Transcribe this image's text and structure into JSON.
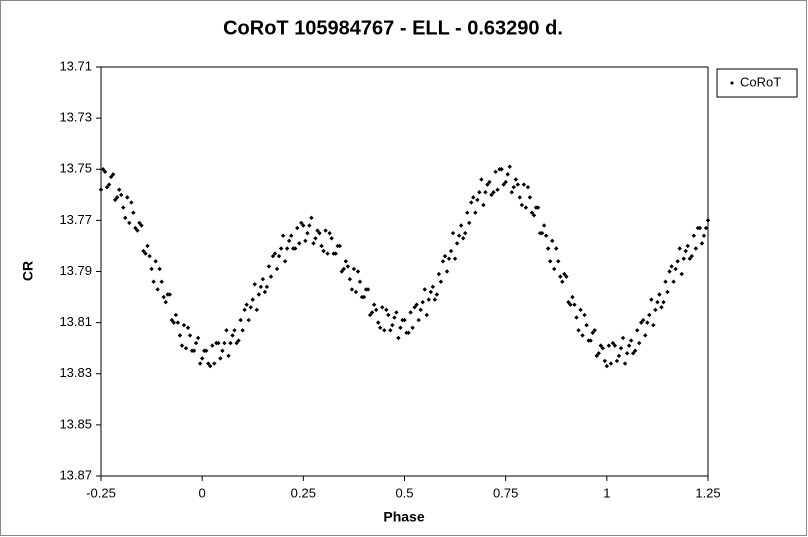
{
  "chart_data": {
    "type": "scatter",
    "title": "CoRoT 105984767  - ELL - 0.63290 d.",
    "x_label": "Phase",
    "y_label": "CR",
    "xlim": [
      -0.25,
      1.25
    ],
    "xticks": [
      -0.25,
      0,
      0.25,
      0.5,
      0.75,
      1,
      1.25
    ],
    "ylim": [
      13.71,
      13.87
    ],
    "yticks": [
      13.71,
      13.73,
      13.75,
      13.77,
      13.79,
      13.81,
      13.83,
      13.85,
      13.87
    ],
    "y_reversed": true,
    "grid": false,
    "legend": "right",
    "series": [
      {
        "name": "CoRoT",
        "color": "#000000",
        "x": [
          -0.25,
          -0.245,
          -0.24,
          -0.235,
          -0.23,
          -0.225,
          -0.22,
          -0.215,
          -0.21,
          -0.205,
          -0.2,
          -0.195,
          -0.19,
          -0.185,
          -0.18,
          -0.175,
          -0.17,
          -0.165,
          -0.16,
          -0.155,
          -0.15,
          -0.145,
          -0.14,
          -0.135,
          -0.13,
          -0.125,
          -0.12,
          -0.115,
          -0.11,
          -0.105,
          -0.1,
          -0.095,
          -0.09,
          -0.085,
          -0.08,
          -0.075,
          -0.07,
          -0.065,
          -0.06,
          -0.055,
          -0.05,
          -0.045,
          -0.04,
          -0.035,
          -0.03,
          -0.025,
          -0.02,
          -0.015,
          -0.01,
          -0.005,
          0,
          0.005,
          0.01,
          0.015,
          0.02,
          0.025,
          0.03,
          0.035,
          0.04,
          0.045,
          0.05,
          0.055,
          0.06,
          0.065,
          0.07,
          0.075,
          0.08,
          0.085,
          0.09,
          0.095,
          0.1,
          0.105,
          0.11,
          0.115,
          0.12,
          0.125,
          0.13,
          0.135,
          0.14,
          0.145,
          0.15,
          0.155,
          0.16,
          0.165,
          0.17,
          0.175,
          0.18,
          0.185,
          0.19,
          0.195,
          0.2,
          0.205,
          0.21,
          0.215,
          0.22,
          0.225,
          0.23,
          0.235,
          0.24,
          0.245,
          0.25,
          0.255,
          0.26,
          0.265,
          0.27,
          0.275,
          0.28,
          0.285,
          0.29,
          0.295,
          0.3,
          0.305,
          0.31,
          0.315,
          0.32,
          0.325,
          0.33,
          0.335,
          0.34,
          0.345,
          0.35,
          0.355,
          0.36,
          0.365,
          0.37,
          0.375,
          0.38,
          0.385,
          0.39,
          0.395,
          0.4,
          0.405,
          0.41,
          0.415,
          0.42,
          0.425,
          0.43,
          0.435,
          0.44,
          0.445,
          0.45,
          0.455,
          0.46,
          0.465,
          0.47,
          0.475,
          0.48,
          0.485,
          0.49,
          0.495,
          0.5,
          0.505,
          0.51,
          0.515,
          0.52,
          0.525,
          0.53,
          0.535,
          0.54,
          0.545,
          0.55,
          0.555,
          0.56,
          0.565,
          0.57,
          0.575,
          0.58,
          0.585,
          0.59,
          0.595,
          0.6,
          0.605,
          0.61,
          0.615,
          0.62,
          0.625,
          0.63,
          0.635,
          0.64,
          0.645,
          0.65,
          0.655,
          0.66,
          0.665,
          0.67,
          0.675,
          0.68,
          0.685,
          0.69,
          0.695,
          0.7,
          0.705,
          0.71,
          0.715,
          0.72,
          0.725,
          0.73,
          0.735,
          0.74,
          0.745,
          0.75,
          0.755,
          0.76,
          0.765,
          0.77,
          0.775,
          0.78,
          0.785,
          0.79,
          0.795,
          0.8,
          0.805,
          0.81,
          0.815,
          0.82,
          0.825,
          0.83,
          0.835,
          0.84,
          0.845,
          0.85,
          0.855,
          0.86,
          0.865,
          0.87,
          0.875,
          0.88,
          0.885,
          0.89,
          0.895,
          0.9,
          0.905,
          0.91,
          0.915,
          0.92,
          0.925,
          0.93,
          0.935,
          0.94,
          0.945,
          0.95,
          0.955,
          0.96,
          0.965,
          0.97,
          0.975,
          0.98,
          0.985,
          0.99,
          0.995,
          1,
          1.005,
          1.01,
          1.015,
          1.02,
          1.025,
          1.03,
          1.035,
          1.04,
          1.045,
          1.05,
          1.055,
          1.06,
          1.065,
          1.07,
          1.075,
          1.08,
          1.085,
          1.09,
          1.095,
          1.1,
          1.105,
          1.11,
          1.115,
          1.12,
          1.125,
          1.13,
          1.135,
          1.14,
          1.145,
          1.15,
          1.155,
          1.16,
          1.165,
          1.17,
          1.175,
          1.18,
          1.185,
          1.19,
          1.195,
          1.2,
          1.205,
          1.21,
          1.215,
          1.22,
          1.225,
          1.23,
          1.235,
          1.24,
          1.245,
          1.25
        ],
        "values": [
          13.758,
          13.75,
          13.751,
          13.757,
          13.756,
          13.753,
          13.752,
          13.762,
          13.761,
          13.758,
          13.76,
          13.765,
          13.769,
          13.761,
          13.771,
          13.763,
          13.767,
          13.773,
          13.774,
          13.771,
          13.772,
          13.782,
          13.783,
          13.78,
          13.784,
          13.789,
          13.794,
          13.786,
          13.797,
          13.789,
          13.794,
          13.8,
          13.802,
          13.799,
          13.799,
          13.809,
          13.81,
          13.807,
          13.81,
          13.815,
          13.819,
          13.811,
          13.82,
          13.812,
          13.815,
          13.821,
          13.821,
          13.818,
          13.816,
          13.826,
          13.824,
          13.821,
          13.821,
          13.826,
          13.827,
          13.819,
          13.826,
          13.818,
          13.818,
          13.824,
          13.821,
          13.818,
          13.813,
          13.823,
          13.818,
          13.815,
          13.813,
          13.818,
          13.817,
          13.809,
          13.813,
          13.805,
          13.803,
          13.809,
          13.804,
          13.801,
          13.795,
          13.805,
          13.799,
          13.796,
          13.793,
          13.798,
          13.796,
          13.788,
          13.792,
          13.784,
          13.783,
          13.789,
          13.784,
          13.781,
          13.776,
          13.786,
          13.781,
          13.778,
          13.776,
          13.781,
          13.781,
          13.773,
          13.779,
          13.771,
          13.772,
          13.778,
          13.775,
          13.772,
          13.769,
          13.779,
          13.777,
          13.774,
          13.775,
          13.78,
          13.782,
          13.774,
          13.783,
          13.775,
          13.777,
          13.783,
          13.783,
          13.78,
          13.78,
          13.79,
          13.789,
          13.786,
          13.788,
          13.793,
          13.797,
          13.789,
          13.798,
          13.79,
          13.794,
          13.8,
          13.8,
          13.797,
          13.797,
          13.807,
          13.806,
          13.803,
          13.805,
          13.81,
          13.812,
          13.804,
          13.813,
          13.805,
          13.807,
          13.813,
          13.811,
          13.808,
          13.806,
          13.816,
          13.812,
          13.809,
          13.809,
          13.814,
          13.814,
          13.806,
          13.812,
          13.804,
          13.803,
          13.809,
          13.805,
          13.802,
          13.797,
          13.807,
          13.801,
          13.798,
          13.796,
          13.801,
          13.799,
          13.791,
          13.794,
          13.786,
          13.784,
          13.79,
          13.785,
          13.782,
          13.775,
          13.785,
          13.779,
          13.776,
          13.772,
          13.777,
          13.775,
          13.767,
          13.771,
          13.763,
          13.761,
          13.767,
          13.762,
          13.759,
          13.754,
          13.764,
          13.759,
          13.756,
          13.755,
          13.76,
          13.759,
          13.751,
          13.758,
          13.75,
          13.75,
          13.756,
          13.755,
          13.752,
          13.749,
          13.759,
          13.757,
          13.754,
          13.756,
          13.761,
          13.764,
          13.756,
          13.765,
          13.757,
          13.761,
          13.767,
          13.768,
          13.765,
          13.765,
          13.775,
          13.775,
          13.772,
          13.776,
          13.781,
          13.786,
          13.778,
          13.789,
          13.781,
          13.786,
          13.792,
          13.794,
          13.791,
          13.792,
          13.802,
          13.803,
          13.8,
          13.803,
          13.808,
          13.813,
          13.805,
          13.815,
          13.807,
          13.811,
          13.817,
          13.817,
          13.814,
          13.813,
          13.823,
          13.822,
          13.819,
          13.82,
          13.825,
          13.827,
          13.819,
          13.826,
          13.818,
          13.819,
          13.825,
          13.823,
          13.82,
          13.816,
          13.826,
          13.822,
          13.819,
          13.817,
          13.822,
          13.821,
          13.813,
          13.818,
          13.81,
          13.809,
          13.815,
          13.81,
          13.807,
          13.801,
          13.811,
          13.805,
          13.802,
          13.799,
          13.804,
          13.802,
          13.794,
          13.798,
          13.79,
          13.788,
          13.794,
          13.789,
          13.786,
          13.781,
          13.791,
          13.785,
          13.782,
          13.78,
          13.785,
          13.784,
          13.776,
          13.781,
          13.773,
          13.773,
          13.779,
          13.776,
          13.773,
          13.77
        ]
      }
    ]
  }
}
